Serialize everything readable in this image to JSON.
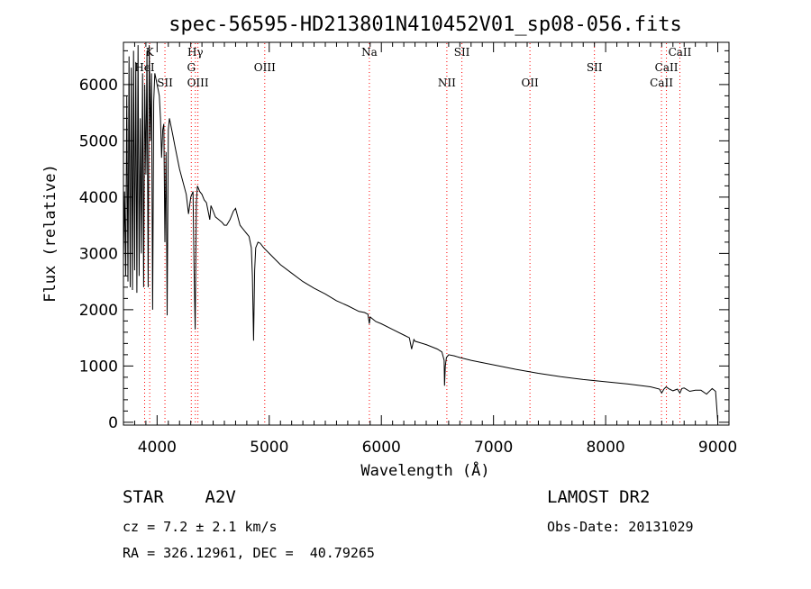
{
  "chart_data": {
    "type": "line",
    "title": "spec-56595-HD213801N410452V01_sp08-056.fits",
    "xlabel": "Wavelength (Å)",
    "ylabel": "Flux (relative)",
    "xlim": [
      3700,
      9100
    ],
    "ylim": [
      -50,
      6750
    ],
    "xticks": [
      4000,
      5000,
      6000,
      7000,
      8000,
      9000
    ],
    "xtick_labels": [
      "4000",
      "5000",
      "6000",
      "7000",
      "8000",
      "9000"
    ],
    "yticks": [
      0,
      1000,
      2000,
      3000,
      4000,
      5000,
      6000
    ],
    "ytick_labels": [
      "0",
      "1000",
      "2000",
      "3000",
      "4000",
      "5000",
      "6000"
    ],
    "grid": false,
    "line_color": "#000000",
    "marker_color": "#ff0000",
    "spectral_lines": [
      {
        "label": "K",
        "x": 3934,
        "row": 0
      },
      {
        "label": "HeI",
        "x": 3889,
        "row": 1
      },
      {
        "label": "SII",
        "x": 4070,
        "row": 2
      },
      {
        "label": "Hγ",
        "x": 4341,
        "row": 0
      },
      {
        "label": "G",
        "x": 4305,
        "row": 1
      },
      {
        "label": "OIII",
        "x": 4364,
        "row": 2
      },
      {
        "label": "OIII",
        "x": 4960,
        "row": 1
      },
      {
        "label": "Na",
        "x": 5893,
        "row": 0
      },
      {
        "label": "SII",
        "x": 6718,
        "row": 0
      },
      {
        "label": "NII",
        "x": 6584,
        "row": 2
      },
      {
        "label": "OII",
        "x": 7325,
        "row": 2
      },
      {
        "label": "SII",
        "x": 7900,
        "row": 1
      },
      {
        "label": "CaII",
        "x": 8662,
        "row": 0
      },
      {
        "label": "CaII",
        "x": 8542,
        "row": 1
      },
      {
        "label": "CaII",
        "x": 8498,
        "row": 2
      }
    ],
    "series": [
      {
        "x": [
          3700,
          3710,
          3720,
          3730,
          3740,
          3750,
          3760,
          3770,
          3780,
          3790,
          3800,
          3810,
          3820,
          3830,
          3840,
          3850,
          3860,
          3870,
          3880,
          3890,
          3900,
          3910,
          3920,
          3930,
          3940,
          3950,
          3960,
          3970,
          3980,
          3990,
          4000,
          4010,
          4020,
          4030,
          4040,
          4050,
          4060,
          4070,
          4080,
          4090,
          4100,
          4110,
          4120,
          4140,
          4160,
          4180,
          4200,
          4220,
          4240,
          4260,
          4280,
          4300,
          4320,
          4330,
          4340,
          4350,
          4360,
          4380,
          4400,
          4420,
          4440,
          4460,
          4470,
          4480,
          4500,
          4520,
          4550,
          4580,
          4600,
          4620,
          4650,
          4680,
          4700,
          4720,
          4740,
          4760,
          4780,
          4800,
          4820,
          4840,
          4850,
          4860,
          4870,
          4880,
          4900,
          4920,
          4950,
          5000,
          5050,
          5100,
          5200,
          5300,
          5400,
          5500,
          5600,
          5700,
          5800,
          5850,
          5880,
          5893,
          5900,
          5950,
          6000,
          6100,
          6200,
          6250,
          6270,
          6290,
          6300,
          6400,
          6500,
          6540,
          6560,
          6563,
          6570,
          6580,
          6600,
          6650,
          6700,
          6800,
          6900,
          7000,
          7200,
          7400,
          7600,
          7800,
          8000,
          8200,
          8400,
          8480,
          8500,
          8520,
          8540,
          8560,
          8600,
          8640,
          8662,
          8680,
          8700,
          8750,
          8800,
          8850,
          8900,
          8950,
          8980,
          9000
        ],
        "values": [
          2900,
          4100,
          2600,
          5800,
          2500,
          6500,
          2400,
          6300,
          2350,
          6600,
          2700,
          6400,
          2300,
          6700,
          2600,
          5400,
          3000,
          6200,
          2400,
          6000,
          4400,
          6600,
          2400,
          6700,
          5000,
          6200,
          2000,
          5700,
          6200,
          6100,
          6000,
          5900,
          5800,
          5400,
          4700,
          5200,
          5300,
          3200,
          4800,
          1900,
          5200,
          5400,
          5300,
          5100,
          4900,
          4700,
          4500,
          4350,
          4200,
          4050,
          3700,
          4000,
          4100,
          2700,
          1650,
          3900,
          4200,
          4100,
          4050,
          3950,
          3900,
          3700,
          3600,
          3850,
          3750,
          3650,
          3600,
          3550,
          3500,
          3500,
          3600,
          3750,
          3800,
          3650,
          3500,
          3450,
          3400,
          3350,
          3300,
          3100,
          2600,
          1450,
          2700,
          3100,
          3200,
          3180,
          3100,
          3000,
          2900,
          2800,
          2650,
          2500,
          2380,
          2280,
          2160,
          2070,
          1970,
          1950,
          1920,
          1750,
          1870,
          1790,
          1750,
          1650,
          1550,
          1500,
          1300,
          1470,
          1440,
          1380,
          1300,
          1250,
          1100,
          650,
          1000,
          1150,
          1200,
          1180,
          1150,
          1100,
          1060,
          1020,
          940,
          870,
          810,
          760,
          720,
          680,
          630,
          590,
          520,
          590,
          630,
          600,
          560,
          590,
          520,
          600,
          610,
          550,
          570,
          570,
          500,
          600,
          550,
          0
        ]
      }
    ]
  },
  "info": {
    "object_class": "STAR    A2V",
    "survey": "LAMOST DR2",
    "redshift": "cz = 7.2 ± 2.1 km/s",
    "obs_date": "Obs-Date: 20131029",
    "coords": "RA = 326.12961, DEC =  40.79265"
  }
}
